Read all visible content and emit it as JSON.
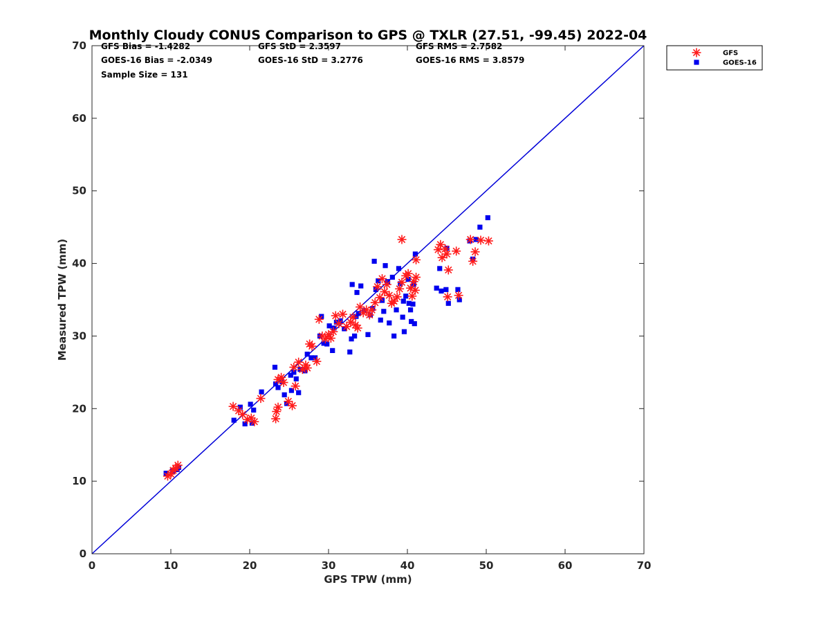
{
  "chart_data": {
    "type": "scatter",
    "title": "Monthly Cloudy CONUS Comparison to GPS @ TXLR (27.51, -99.45) 2022-04",
    "xlabel": "GPS TPW (mm)",
    "ylabel": "Measured TPW (mm)",
    "xlim": [
      0,
      70
    ],
    "ylim": [
      0,
      70
    ],
    "x_ticks": [
      "0",
      "10",
      "20",
      "30",
      "40",
      "50",
      "60",
      "70"
    ],
    "y_ticks": [
      "0",
      "10",
      "20",
      "30",
      "40",
      "50",
      "60",
      "70"
    ],
    "grid": false,
    "legend_position": "outside-top-right",
    "stats": [
      [
        "GFS Bias = -1.4282",
        "GFS StD = 2.3597",
        "GFS RMS = 2.7582"
      ],
      [
        "GOES-16 Bias = -2.0349",
        "GOES-16 StD = 3.2776",
        "GOES-16 RMS = 3.8579"
      ],
      [
        "Sample Size = 131"
      ]
    ],
    "reference_line": {
      "x": [
        0,
        70
      ],
      "y": [
        0,
        70
      ],
      "color": "#0000d8"
    },
    "series": [
      {
        "name": "GFS",
        "marker": "asterisk",
        "color": "#ff1a1a",
        "points": [
          [
            9.6,
            10.7
          ],
          [
            10.0,
            11.0
          ],
          [
            10.3,
            11.5
          ],
          [
            10.6,
            11.8
          ],
          [
            10.9,
            12.2
          ],
          [
            17.9,
            20.3
          ],
          [
            18.6,
            19.7
          ],
          [
            19.1,
            19.2
          ],
          [
            19.7,
            18.5
          ],
          [
            20.2,
            18.7
          ],
          [
            20.6,
            18.2
          ],
          [
            21.4,
            21.4
          ],
          [
            23.3,
            18.6
          ],
          [
            23.4,
            19.6
          ],
          [
            23.6,
            20.2
          ],
          [
            23.6,
            24.0
          ],
          [
            24.0,
            24.3
          ],
          [
            24.3,
            23.6
          ],
          [
            24.9,
            21.0
          ],
          [
            25.4,
            20.4
          ],
          [
            25.6,
            25.7
          ],
          [
            25.8,
            23.1
          ],
          [
            26.2,
            26.4
          ],
          [
            26.7,
            25.4
          ],
          [
            27.1,
            26.0
          ],
          [
            27.3,
            25.6
          ],
          [
            27.6,
            28.9
          ],
          [
            27.9,
            28.6
          ],
          [
            28.5,
            26.5
          ],
          [
            28.8,
            32.3
          ],
          [
            29.2,
            30.0
          ],
          [
            29.6,
            29.6
          ],
          [
            30.0,
            30.2
          ],
          [
            30.3,
            29.7
          ],
          [
            30.6,
            30.6
          ],
          [
            30.9,
            32.8
          ],
          [
            31.3,
            31.7
          ],
          [
            31.8,
            33.0
          ],
          [
            32.3,
            31.3
          ],
          [
            32.8,
            31.9
          ],
          [
            33.1,
            32.6
          ],
          [
            33.4,
            31.5
          ],
          [
            33.7,
            31.1
          ],
          [
            34.0,
            34.0
          ],
          [
            34.4,
            33.2
          ],
          [
            34.8,
            33.6
          ],
          [
            35.2,
            32.9
          ],
          [
            35.5,
            33.6
          ],
          [
            35.9,
            34.6
          ],
          [
            36.2,
            36.8
          ],
          [
            36.5,
            35.3
          ],
          [
            36.8,
            37.9
          ],
          [
            37.1,
            36.1
          ],
          [
            37.4,
            37.1
          ],
          [
            37.7,
            35.6
          ],
          [
            38.0,
            34.5
          ],
          [
            38.3,
            34.8
          ],
          [
            38.7,
            35.4
          ],
          [
            39.0,
            36.5
          ],
          [
            39.3,
            37.4
          ],
          [
            39.8,
            38.3
          ],
          [
            40.1,
            38.6
          ],
          [
            40.4,
            36.6
          ],
          [
            40.8,
            37.5
          ],
          [
            41.1,
            38.1
          ],
          [
            41.0,
            36.3
          ],
          [
            40.6,
            35.5
          ],
          [
            41.1,
            40.5
          ],
          [
            39.3,
            43.3
          ],
          [
            43.9,
            41.9
          ],
          [
            44.2,
            42.6
          ],
          [
            44.4,
            40.8
          ],
          [
            44.8,
            42.0
          ],
          [
            45.0,
            41.3
          ],
          [
            45.2,
            39.1
          ],
          [
            45.1,
            35.4
          ],
          [
            46.2,
            41.7
          ],
          [
            46.5,
            35.6
          ],
          [
            48.0,
            43.3
          ],
          [
            48.3,
            40.3
          ],
          [
            48.6,
            41.6
          ],
          [
            49.3,
            43.2
          ],
          [
            50.3,
            43.1
          ]
        ]
      },
      {
        "name": "GOES-16",
        "marker": "square",
        "color": "#0000ee",
        "points": [
          [
            9.4,
            11.1
          ],
          [
            10.2,
            11.4
          ],
          [
            10.8,
            11.6
          ],
          [
            11.0,
            11.9
          ],
          [
            18.0,
            18.4
          ],
          [
            18.8,
            20.2
          ],
          [
            19.4,
            17.9
          ],
          [
            20.1,
            20.6
          ],
          [
            20.3,
            18.0
          ],
          [
            20.5,
            19.8
          ],
          [
            21.5,
            22.3
          ],
          [
            23.2,
            25.7
          ],
          [
            23.3,
            23.4
          ],
          [
            23.6,
            22.9
          ],
          [
            24.1,
            23.7
          ],
          [
            24.4,
            21.9
          ],
          [
            24.7,
            20.7
          ],
          [
            25.2,
            24.6
          ],
          [
            25.3,
            22.5
          ],
          [
            25.6,
            25.0
          ],
          [
            25.9,
            24.1
          ],
          [
            26.2,
            22.2
          ],
          [
            26.4,
            25.4
          ],
          [
            27.0,
            25.2
          ],
          [
            27.3,
            27.5
          ],
          [
            27.8,
            27.0
          ],
          [
            28.3,
            27.0
          ],
          [
            28.9,
            30.0
          ],
          [
            29.1,
            32.7
          ],
          [
            29.4,
            29.0
          ],
          [
            29.8,
            28.9
          ],
          [
            30.1,
            31.4
          ],
          [
            30.5,
            28.0
          ],
          [
            30.7,
            31.1
          ],
          [
            31.0,
            31.9
          ],
          [
            31.5,
            32.1
          ],
          [
            32.0,
            31.0
          ],
          [
            32.7,
            27.8
          ],
          [
            32.9,
            29.6
          ],
          [
            33.0,
            37.1
          ],
          [
            33.3,
            30.0
          ],
          [
            33.5,
            32.7
          ],
          [
            33.6,
            36.0
          ],
          [
            33.8,
            33.1
          ],
          [
            34.1,
            36.9
          ],
          [
            34.5,
            33.5
          ],
          [
            35.0,
            30.2
          ],
          [
            35.3,
            32.9
          ],
          [
            35.6,
            33.8
          ],
          [
            35.8,
            40.3
          ],
          [
            36.0,
            36.4
          ],
          [
            36.3,
            37.6
          ],
          [
            36.6,
            32.2
          ],
          [
            36.8,
            34.9
          ],
          [
            37.0,
            33.4
          ],
          [
            37.2,
            39.7
          ],
          [
            37.5,
            37.5
          ],
          [
            37.7,
            31.8
          ],
          [
            38.1,
            38.1
          ],
          [
            38.3,
            30.0
          ],
          [
            38.6,
            33.6
          ],
          [
            38.9,
            39.3
          ],
          [
            39.1,
            37.2
          ],
          [
            39.4,
            32.6
          ],
          [
            39.6,
            30.6
          ],
          [
            39.8,
            35.5
          ],
          [
            40.2,
            34.5
          ],
          [
            40.5,
            32.0
          ],
          [
            40.7,
            34.4
          ],
          [
            40.9,
            31.7
          ],
          [
            40.1,
            37.8
          ],
          [
            40.8,
            37.1
          ],
          [
            41.0,
            41.3
          ],
          [
            39.5,
            34.8
          ],
          [
            40.4,
            33.6
          ],
          [
            43.7,
            36.6
          ],
          [
            44.1,
            39.3
          ],
          [
            44.3,
            36.2
          ],
          [
            44.9,
            36.4
          ],
          [
            45.0,
            42.1
          ],
          [
            45.2,
            34.5
          ],
          [
            46.4,
            36.4
          ],
          [
            46.6,
            35.0
          ],
          [
            47.9,
            43.1
          ],
          [
            48.3,
            40.6
          ],
          [
            48.7,
            43.3
          ],
          [
            49.2,
            45.0
          ],
          [
            50.2,
            46.3
          ]
        ]
      }
    ]
  }
}
